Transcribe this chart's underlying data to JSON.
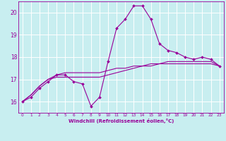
{
  "xlabel": "Windchill (Refroidissement éolien,°C)",
  "bg_color": "#c8eef0",
  "grid_color": "#ffffff",
  "line_color": "#990099",
  "hours": [
    0,
    1,
    2,
    3,
    4,
    5,
    6,
    7,
    8,
    9,
    10,
    11,
    12,
    13,
    14,
    15,
    16,
    17,
    18,
    19,
    20,
    21,
    22,
    23
  ],
  "temp": [
    16.0,
    16.2,
    16.6,
    16.9,
    17.2,
    17.2,
    16.9,
    16.8,
    15.8,
    16.2,
    17.8,
    19.3,
    19.7,
    20.3,
    20.3,
    19.7,
    18.6,
    18.3,
    18.2,
    18.0,
    17.9,
    18.0,
    17.9,
    17.6
  ],
  "line2": [
    16.0,
    16.3,
    16.7,
    17.0,
    17.1,
    17.1,
    17.1,
    17.1,
    17.1,
    17.1,
    17.2,
    17.3,
    17.4,
    17.5,
    17.6,
    17.6,
    17.7,
    17.7,
    17.7,
    17.7,
    17.7,
    17.7,
    17.7,
    17.6
  ],
  "line3": [
    16.0,
    16.3,
    16.7,
    17.0,
    17.2,
    17.3,
    17.3,
    17.3,
    17.3,
    17.3,
    17.4,
    17.5,
    17.5,
    17.6,
    17.6,
    17.7,
    17.7,
    17.8,
    17.8,
    17.8,
    17.8,
    17.8,
    17.8,
    17.6
  ],
  "ylim": [
    15.5,
    20.5
  ],
  "yticks": [
    16,
    17,
    18,
    19,
    20
  ],
  "xlim": [
    -0.5,
    23.5
  ]
}
